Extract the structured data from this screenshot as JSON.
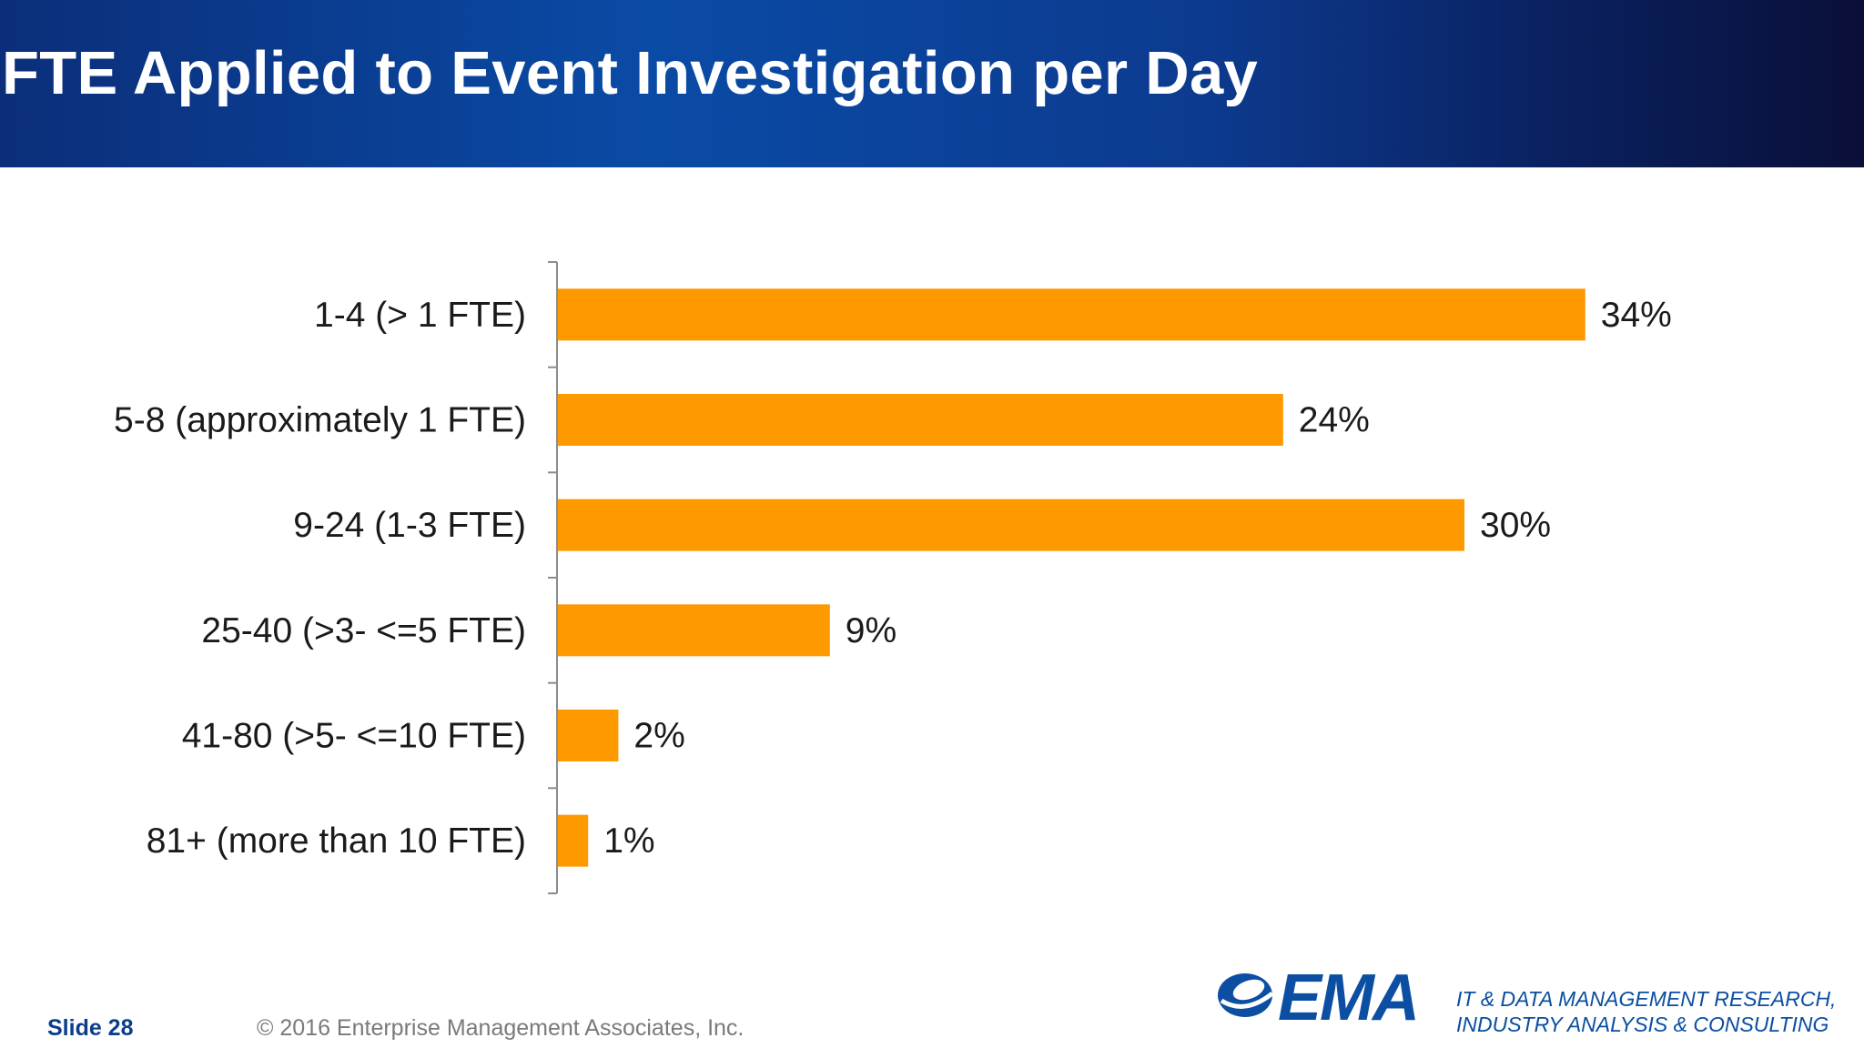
{
  "slide": {
    "title": "FTE Applied to Event Investigation per Day",
    "slide_number": "Slide 28",
    "copyright": "© 2016 Enterprise Management Associates, Inc.",
    "logo_text": "EMA",
    "tagline_line1": "IT & DATA MANAGEMENT RESEARCH,",
    "tagline_line2": "INDUSTRY ANALYSIS & CONSULTING"
  },
  "colors": {
    "bar": "#FF9900",
    "header_start": "#0b2e7a",
    "header_end": "#0a0f38",
    "brand_blue": "#0b4ea2"
  },
  "chart_data": {
    "type": "bar",
    "orientation": "horizontal",
    "title": "",
    "xlabel": "",
    "ylabel": "",
    "categories": [
      "1-4 (> 1 FTE)",
      "5-8 (approximately 1 FTE)",
      "9-24 (1-3 FTE)",
      "25-40 (>3- <=5 FTE)",
      "41-80 (>5- <=10 FTE)",
      "81+ (more than 10 FTE)"
    ],
    "values": [
      34,
      24,
      30,
      9,
      2,
      1
    ],
    "value_labels": [
      "34%",
      "24%",
      "30%",
      "9%",
      "2%",
      "1%"
    ],
    "xlim": [
      0,
      40
    ],
    "grid": false,
    "legend": "none"
  }
}
